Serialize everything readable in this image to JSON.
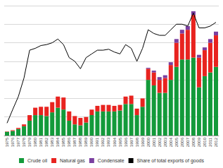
{
  "chart_data": {
    "type": "bar",
    "categories": [
      "1975",
      "1976",
      "1977",
      "1978",
      "1979",
      "1980",
      "1981",
      "1982",
      "1983",
      "1984",
      "1985",
      "1986",
      "1987",
      "1988",
      "1989",
      "1990",
      "1991",
      "1992",
      "1993",
      "1994",
      "1995",
      "1996",
      "1997",
      "1998",
      "1999",
      "2000",
      "2001",
      "2002",
      "2003",
      "2004",
      "2005",
      "2006",
      "2007",
      "2008",
      "2009",
      "2010",
      "2011",
      "2012"
    ],
    "series": [
      {
        "name": "Crude oil",
        "color": "#139a3a",
        "type": "bar",
        "values": [
          0.2,
          0.25,
          0.35,
          0.5,
          0.8,
          1.1,
          1.1,
          1.05,
          1.25,
          1.5,
          1.4,
          0.8,
          0.6,
          0.55,
          0.7,
          1.1,
          1.3,
          1.3,
          1.3,
          1.3,
          1.35,
          1.7,
          1.7,
          1.1,
          1.55,
          3.0,
          2.7,
          2.3,
          2.3,
          3.0,
          3.7,
          4.1,
          4.1,
          4.2,
          2.6,
          3.2,
          3.4,
          3.7
        ]
      },
      {
        "name": "Natural gas",
        "color": "#e8231f",
        "type": "bar",
        "values": [
          0.02,
          0.04,
          0.06,
          0.1,
          0.3,
          0.4,
          0.45,
          0.5,
          0.55,
          0.6,
          0.65,
          0.5,
          0.45,
          0.4,
          0.3,
          0.3,
          0.3,
          0.35,
          0.35,
          0.3,
          0.3,
          0.4,
          0.45,
          0.35,
          0.45,
          0.6,
          0.7,
          0.7,
          0.8,
          0.8,
          1.3,
          1.4,
          1.6,
          2.3,
          1.6,
          1.4,
          1.6,
          1.7
        ]
      },
      {
        "name": "Condensate",
        "color": "#7b3fa0",
        "type": "bar",
        "values": [
          0,
          0,
          0,
          0,
          0,
          0,
          0,
          0,
          0,
          0,
          0,
          0,
          0,
          0,
          0,
          0,
          0,
          0,
          0,
          0,
          0,
          0,
          0,
          0,
          0,
          0.05,
          0.1,
          0.15,
          0.15,
          0.15,
          0.2,
          0.2,
          0.2,
          0.2,
          0.15,
          0.15,
          0.2,
          0.2
        ]
      },
      {
        "name": "Share of total exports of goods",
        "color": "#000000",
        "type": "line",
        "axis": "y2",
        "values": [
          6.7,
          14,
          21,
          31,
          46,
          47,
          48.5,
          49,
          50,
          52,
          49,
          42,
          40,
          36,
          42,
          44,
          46,
          46,
          46.5,
          45,
          44,
          49,
          47,
          40,
          47,
          57,
          55,
          54,
          54,
          57,
          60,
          60,
          59,
          66,
          58,
          58,
          59,
          61
        ]
      }
    ],
    "stacked": true,
    "ylim": [
      0,
      7
    ],
    "yticks": [
      0,
      1,
      2,
      3,
      4,
      5,
      6,
      7
    ],
    "y2lim": [
      0,
      70
    ],
    "y2ticks": [
      0,
      10,
      20,
      30,
      40,
      50,
      60,
      70
    ],
    "grid": true,
    "tick_labels": "x",
    "legend": "bottom"
  }
}
